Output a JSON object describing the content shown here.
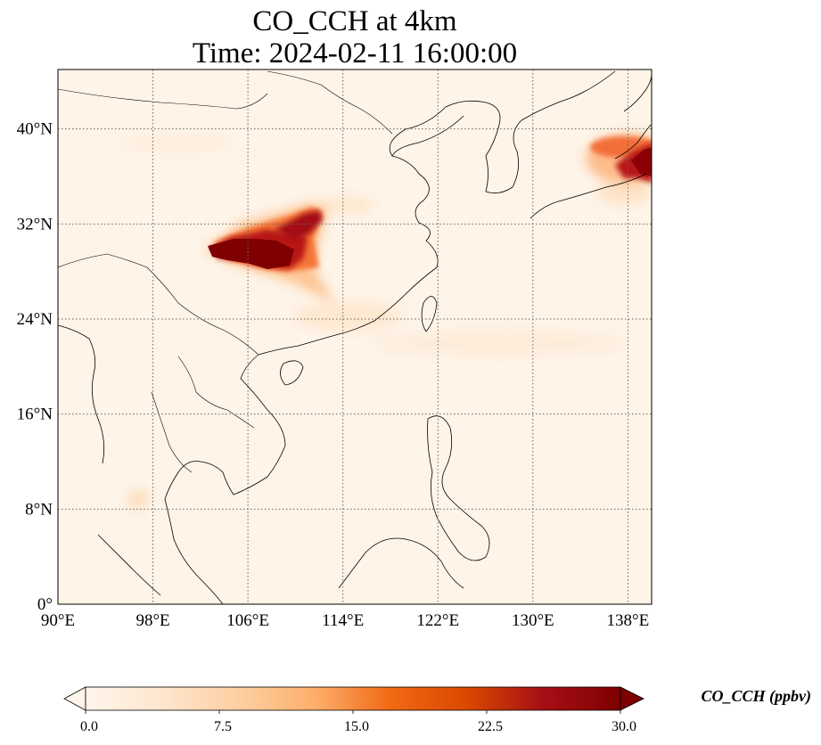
{
  "title": {
    "line1": "CO_CCH at 4km",
    "line2": "Time: 2024-02-11 16:00:00"
  },
  "map": {
    "lon_range": [
      90,
      140
    ],
    "lat_range": [
      0,
      45
    ],
    "lon_ticks": [
      {
        "value": 90,
        "label": "90°E"
      },
      {
        "value": 98,
        "label": "98°E"
      },
      {
        "value": 106,
        "label": "106°E"
      },
      {
        "value": 114,
        "label": "114°E"
      },
      {
        "value": 122,
        "label": "122°E"
      },
      {
        "value": 130,
        "label": "130°E"
      },
      {
        "value": 138,
        "label": "138°E"
      }
    ],
    "lat_ticks": [
      {
        "value": 0,
        "label": "0°"
      },
      {
        "value": 8,
        "label": "8°N"
      },
      {
        "value": 16,
        "label": "16°N"
      },
      {
        "value": 24,
        "label": "24°N"
      },
      {
        "value": 32,
        "label": "32°N"
      },
      {
        "value": 40,
        "label": "40°N"
      }
    ],
    "gridlines": true,
    "plumes": [
      {
        "name": "sichuan-plume",
        "lon": 108.5,
        "lat": 29.5,
        "peak": 30
      },
      {
        "name": "hubei-plume",
        "lon": 111.5,
        "lat": 31.5,
        "peak": 24
      },
      {
        "name": "japan-plume",
        "lon": 138.5,
        "lat": 37.5,
        "peak": 28
      }
    ]
  },
  "colorbar": {
    "title": "CO_CCH (ppbv)",
    "min": 0.0,
    "max": 30.0,
    "extend": "both",
    "ticks": [
      {
        "value": 0.0,
        "label": "0.0"
      },
      {
        "value": 7.5,
        "label": "7.5"
      },
      {
        "value": 15.0,
        "label": "15.0"
      },
      {
        "value": 22.5,
        "label": "22.5"
      },
      {
        "value": 30.0,
        "label": "30.0"
      }
    ],
    "colors": [
      "#fff5eb",
      "#fee6ce",
      "#fdd0a2",
      "#fdae6b",
      "#f16913",
      "#d94801",
      "#a50f15",
      "#7f0000"
    ]
  }
}
